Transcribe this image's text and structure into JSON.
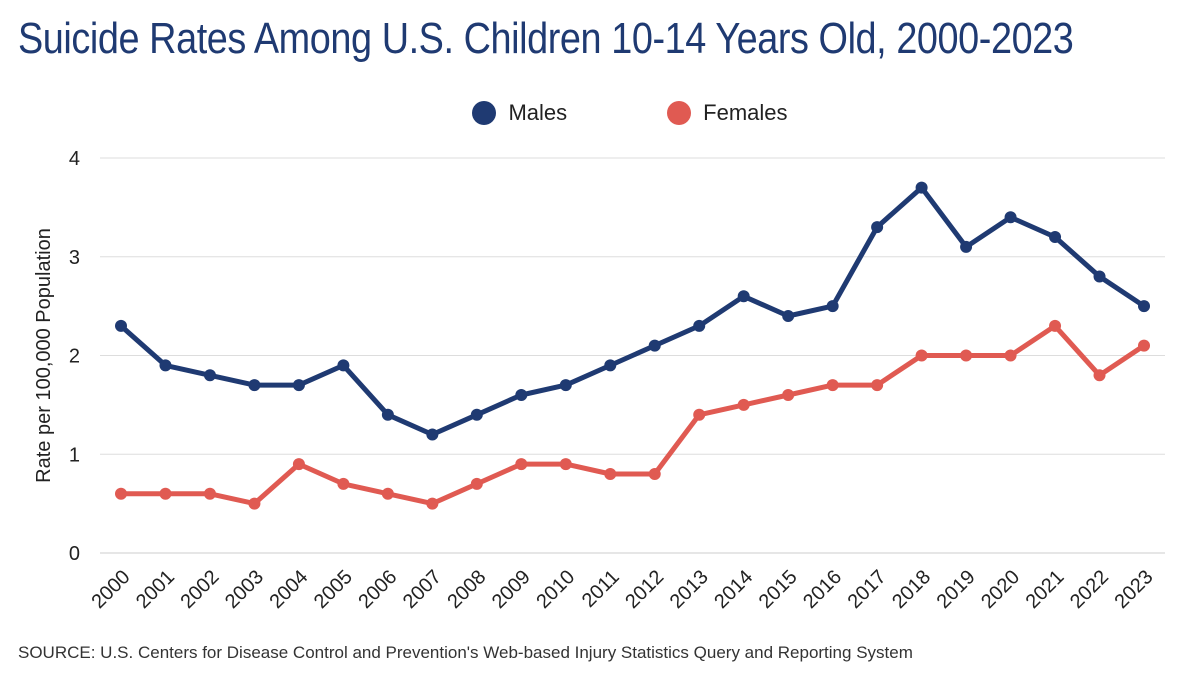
{
  "title": "Suicide Rates Among U.S. Children 10-14 Years Old, 2000-2023",
  "source": "SOURCE: U.S. Centers for Disease Control and Prevention's Web-based Injury Statistics Query and Reporting System",
  "chart_data": {
    "type": "line",
    "title": "Suicide Rates Among U.S. Children 10-14 Years Old, 2000-2023",
    "xlabel": "",
    "ylabel": "Rate per 100,000 Population",
    "x": [
      "2000",
      "2001",
      "2002",
      "2003",
      "2004",
      "2005",
      "2006",
      "2007",
      "2008",
      "2009",
      "2010",
      "2011",
      "2012",
      "2013",
      "2014",
      "2015",
      "2016",
      "2017",
      "2018",
      "2019",
      "2020",
      "2021",
      "2022",
      "2023"
    ],
    "ylim": [
      0,
      4
    ],
    "yticks": [
      0,
      1,
      2,
      3,
      4
    ],
    "grid": true,
    "legend_position": "top-center",
    "series": [
      {
        "name": "Males",
        "color": "#1f3a72",
        "values": [
          2.3,
          1.9,
          1.8,
          1.7,
          1.7,
          1.9,
          1.4,
          1.2,
          1.4,
          1.6,
          1.7,
          1.9,
          2.1,
          2.3,
          2.6,
          2.4,
          2.5,
          3.3,
          3.7,
          3.1,
          3.4,
          3.2,
          2.8,
          2.5
        ]
      },
      {
        "name": "Females",
        "color": "#e05a52",
        "values": [
          0.6,
          0.6,
          0.6,
          0.5,
          0.9,
          0.7,
          0.6,
          0.5,
          0.7,
          0.9,
          0.9,
          0.8,
          0.8,
          1.4,
          1.5,
          1.6,
          1.7,
          1.7,
          2.0,
          2.0,
          2.0,
          2.3,
          1.8,
          2.1
        ]
      }
    ]
  }
}
